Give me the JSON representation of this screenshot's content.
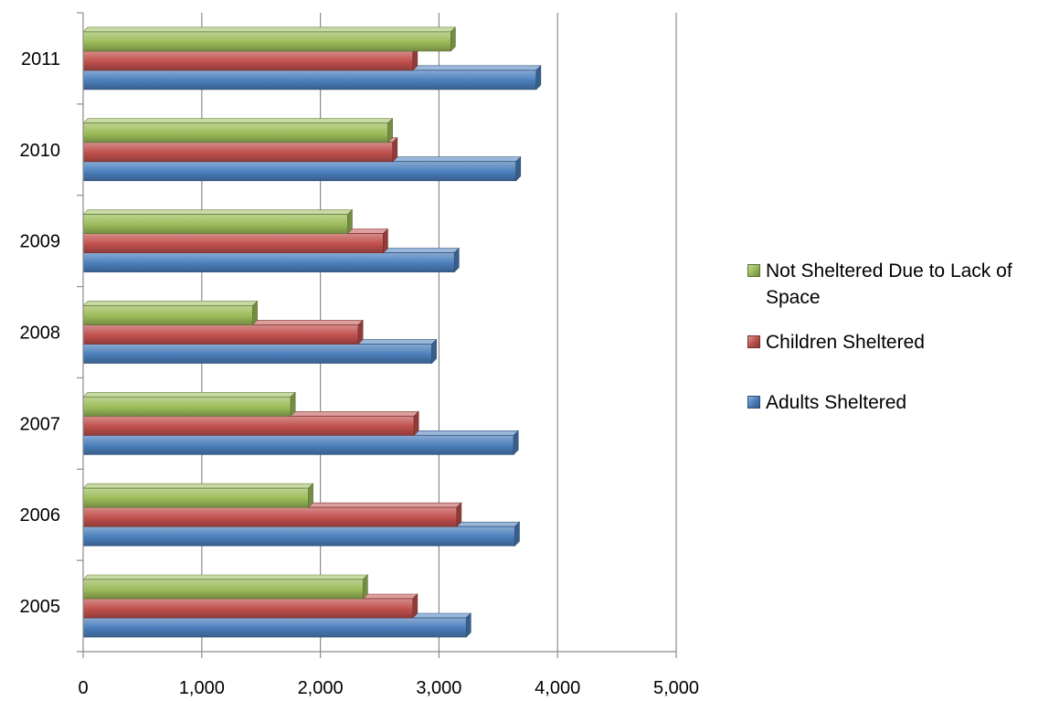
{
  "chart_data": {
    "type": "bar",
    "orientation": "horizontal",
    "categories": [
      "2005",
      "2006",
      "2007",
      "2008",
      "2009",
      "2010",
      "2011"
    ],
    "series": [
      {
        "name": "Adults Sheltered",
        "color": "#4A7EBB",
        "values": [
          3230,
          3640,
          3630,
          2940,
          3130,
          3650,
          3820
        ]
      },
      {
        "name": "Children Sheltered",
        "color": "#C0504D",
        "values": [
          2780,
          3150,
          2790,
          2320,
          2530,
          2610,
          2780
        ]
      },
      {
        "name": "Not Sheltered Due to Lack of Space",
        "color": "#9BBB59",
        "values": [
          2360,
          1900,
          1750,
          1430,
          2230,
          2570,
          3100
        ]
      }
    ],
    "xlim": [
      0,
      5000
    ],
    "x_ticks": [
      "0",
      "1,000",
      "2,000",
      "3,000",
      "4,000",
      "5,000"
    ],
    "grid": "vertical",
    "legend_position": "right",
    "legend_order": [
      "Not Sheltered Due to Lack of Space",
      "Children Sheltered",
      "Adults Sheltered"
    ],
    "title": "",
    "xlabel": "",
    "ylabel": ""
  }
}
